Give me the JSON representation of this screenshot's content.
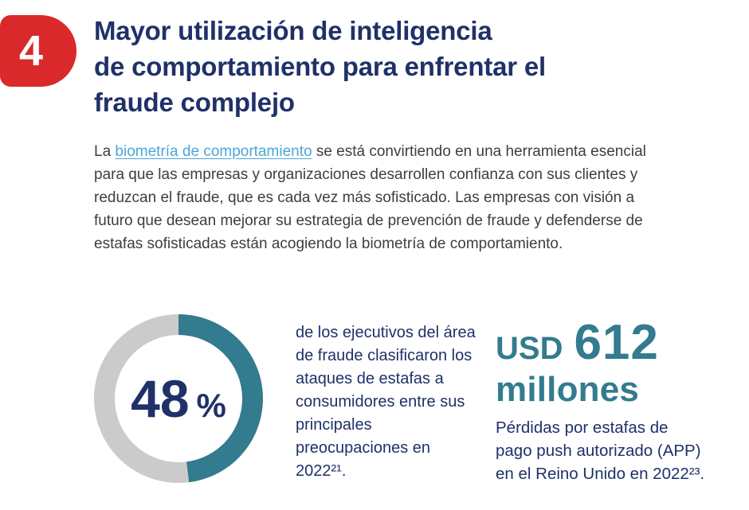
{
  "colors": {
    "accent_red": "#d9292b",
    "navy": "#1f3168",
    "teal": "#337b8e",
    "ring_gray": "#cbcbcb",
    "body_text": "#3e3e3e",
    "link_blue": "#4ba6d9"
  },
  "badge": {
    "number": "4"
  },
  "heading": {
    "lines": [
      "Mayor utilización de inteligencia",
      "de comportamiento para enfrentar el",
      "fraude complejo"
    ]
  },
  "paragraph": {
    "prefix": "La ",
    "link_text": "biometría de comportamiento",
    "line1_rest": " se está convirtiendo en una herramienta esencial",
    "lines": [
      "para que las empresas y organizaciones desarrollen confianza con sus clientes y",
      "reduzcan el fraude, que es cada vez más sofisticado. Las empresas con visión a",
      "futuro que desean mejorar su estrategia de prevención de fraude y defenderse de",
      "estafas sofisticadas están acogiendo la biometría de comportamiento."
    ]
  },
  "donut_stat": {
    "value": "48",
    "unit": "%",
    "description_lines": [
      "de los ejecutivos del área",
      "de fraude clasificaron los",
      "ataques de estafas a",
      "consumidores entre sus",
      "principales",
      "preocupaciones en",
      "2022²¹."
    ]
  },
  "usd_stat": {
    "currency": "USD",
    "value": "612",
    "unit": "millones",
    "description_lines": [
      "Pérdidas por estafas de",
      "pago push autorizado (APP)",
      "en el Reino Unido en 2022²³."
    ]
  },
  "chart_data": {
    "type": "pie",
    "donut": true,
    "title": "",
    "labels": [
      "Ejecutivos del área de fraude que clasificaron los ataques de estafas a consumidores entre sus principales preocupaciones en 2022",
      "Resto"
    ],
    "values": [
      48,
      52
    ],
    "colors": [
      "#337b8e",
      "#cbcbcb"
    ],
    "center_label": "48 %",
    "start_angle": "top",
    "direction": "clockwise",
    "legend": "none"
  }
}
